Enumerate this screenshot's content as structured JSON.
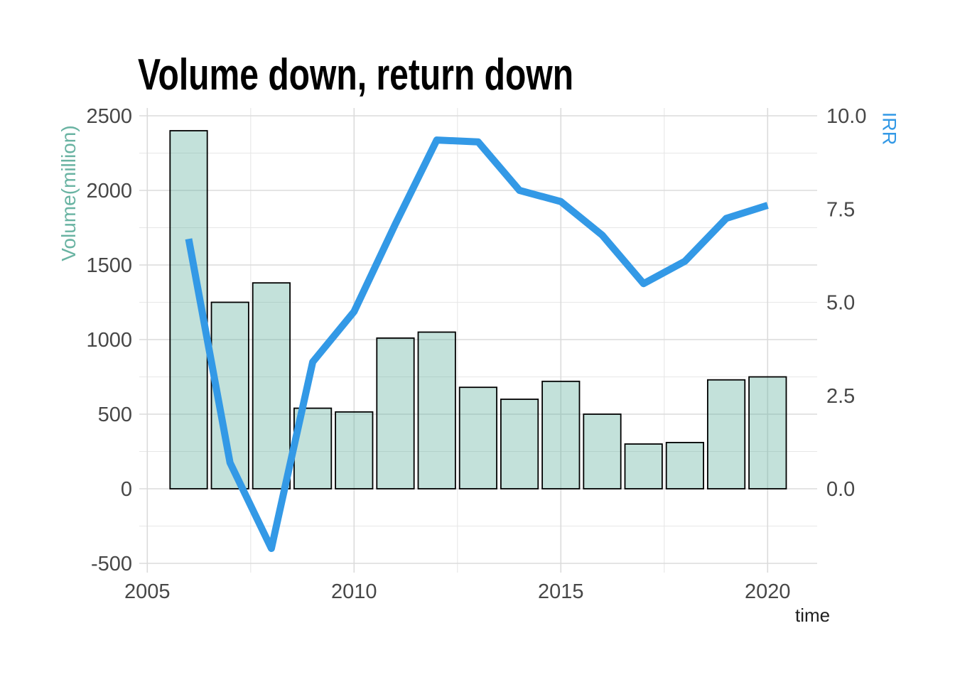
{
  "chart_data": {
    "type": "combo",
    "title": "Volume down, return down",
    "x": [
      2006,
      2007,
      2008,
      2009,
      2010,
      2011,
      2012,
      2013,
      2014,
      2015,
      2016,
      2017,
      2018,
      2019,
      2020
    ],
    "series": [
      {
        "name": "Volume(million)",
        "type": "bar",
        "yaxis": "left",
        "values": [
          2400,
          1250,
          1380,
          540,
          515,
          1010,
          1050,
          680,
          600,
          720,
          500,
          300,
          310,
          730,
          750
        ]
      },
      {
        "name": "IRR",
        "type": "line",
        "yaxis": "right",
        "values": [
          6.7,
          0.7,
          -1.6,
          3.4,
          4.75,
          7.1,
          9.35,
          9.3,
          8.0,
          7.7,
          6.8,
          5.5,
          6.1,
          7.25,
          7.6
        ]
      }
    ],
    "left_axis": {
      "label": "Volume(million)",
      "color": "#69b3a2",
      "ticks": [
        2500,
        2000,
        1500,
        1000,
        500,
        0,
        -500
      ],
      "tick_labels": [
        "2500",
        "2000",
        "1500",
        "1000",
        "500",
        "0",
        "-500"
      ],
      "range": [
        -500,
        2500
      ]
    },
    "right_axis": {
      "label": "IRR",
      "color": "#3399e6",
      "ticks": [
        10.0,
        7.5,
        5.0,
        2.5,
        0.0
      ],
      "tick_labels": [
        "10.0",
        "7.5",
        "5.0",
        "2.5",
        "0.0"
      ],
      "range": [
        0,
        10
      ],
      "relation": "right_value = left_value / 250"
    },
    "x_axis": {
      "label": "time",
      "ticks": [
        2005,
        2010,
        2015,
        2020
      ],
      "tick_labels": [
        "2005",
        "2010",
        "2015",
        "2020"
      ]
    },
    "bar_fill": "#69b3a2",
    "bar_fill_opacity": 0.4,
    "bar_stroke": "#000000",
    "line_color": "#3399e6",
    "grid": true,
    "legend": "none"
  }
}
